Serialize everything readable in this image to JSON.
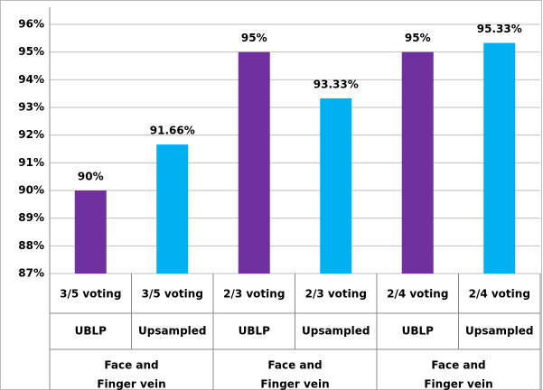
{
  "chart_data": {
    "type": "bar",
    "categories": [
      "3/5 voting",
      "3/5 voting",
      "2/3 voting",
      "2/3 voting",
      "2/4 voting",
      "2/4 voting"
    ],
    "subcategories": [
      "UBLP",
      "Upsampled",
      "UBLP",
      "Upsampled",
      "UBLP",
      "Upsampled"
    ],
    "groups": [
      [
        "Face and",
        "Finger vein"
      ],
      [
        "Face and",
        "Finger vein"
      ],
      [
        "Face and",
        "Finger vein"
      ]
    ],
    "values": [
      90,
      91.66,
      95,
      93.33,
      95,
      95.33
    ],
    "value_labels": [
      "90%",
      "91.66%",
      "95%",
      "93.33%",
      "95%",
      "95.33%"
    ],
    "colors": [
      "#7030a0",
      "#00b0f0",
      "#7030a0",
      "#00b0f0",
      "#7030a0",
      "#00b0f0"
    ],
    "ylim": [
      87,
      96
    ],
    "yticks": [
      {
        "value": 87,
        "label": "87%"
      },
      {
        "value": 88,
        "label": "88%"
      },
      {
        "value": 89,
        "label": "89%"
      },
      {
        "value": 90,
        "label": "90%"
      },
      {
        "value": 91,
        "label": "91%"
      },
      {
        "value": 92,
        "label": "92%"
      },
      {
        "value": 93,
        "label": "93%"
      },
      {
        "value": 94,
        "label": "94%"
      },
      {
        "value": 95,
        "label": "95%"
      },
      {
        "value": 96,
        "label": "96%"
      }
    ],
    "grid": true
  }
}
